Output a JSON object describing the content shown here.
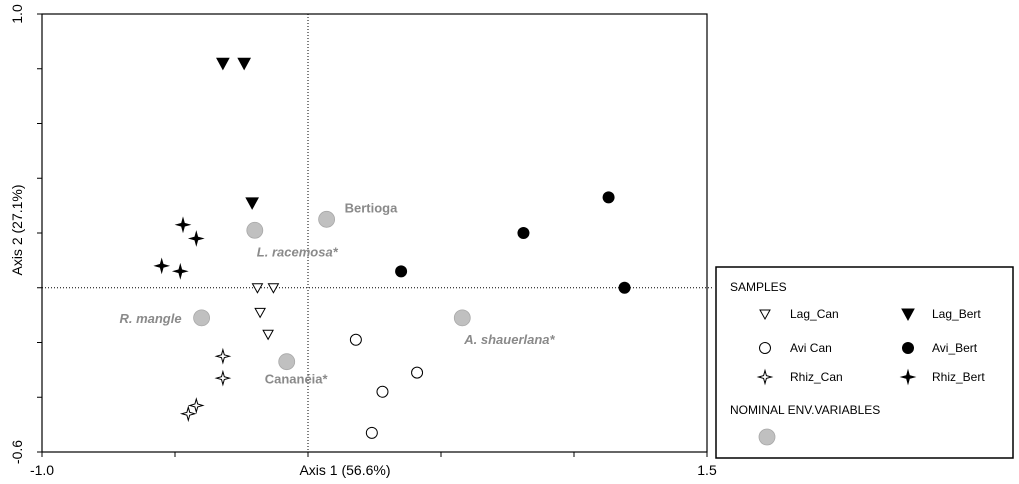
{
  "chart_data": {
    "type": "scatter",
    "xlabel": "Axis 1 (56.6%)",
    "ylabel": "Axis 2 (27.1%)",
    "xlim": [
      -1.0,
      1.5
    ],
    "ylim": [
      -0.6,
      1.0
    ],
    "x_tick_labels": [
      "-1.0",
      "1.5"
    ],
    "y_tick_labels": [
      "1.0",
      "-0.6"
    ],
    "reference_lines": {
      "x": 0,
      "y": 0
    },
    "series": [
      {
        "name": "Lag_Can",
        "marker": "triangle-down-open",
        "color": "#000000",
        "points": [
          [
            -0.19,
            0.0
          ],
          [
            -0.13,
            0.0
          ],
          [
            -0.18,
            -0.09
          ],
          [
            -0.15,
            -0.17
          ]
        ]
      },
      {
        "name": "Lag_Bert",
        "marker": "triangle-down-filled",
        "color": "#000000",
        "points": [
          [
            -0.32,
            0.82
          ],
          [
            -0.24,
            0.82
          ],
          [
            -0.21,
            0.31
          ]
        ]
      },
      {
        "name": "Avi Can",
        "marker": "circle-open",
        "color": "#000000",
        "points": [
          [
            0.18,
            -0.19
          ],
          [
            0.28,
            -0.38
          ],
          [
            0.41,
            -0.31
          ],
          [
            0.24,
            -0.53
          ]
        ]
      },
      {
        "name": "Avi_Bert",
        "marker": "circle-filled",
        "color": "#000000",
        "points": [
          [
            0.35,
            0.06
          ],
          [
            0.81,
            0.2
          ],
          [
            1.13,
            0.33
          ],
          [
            1.19,
            0.0
          ]
        ]
      },
      {
        "name": "Rhiz_Can",
        "marker": "star4-open",
        "color": "#000000",
        "points": [
          [
            -0.32,
            -0.25
          ],
          [
            -0.32,
            -0.33
          ],
          [
            -0.45,
            -0.46
          ],
          [
            -0.42,
            -0.43
          ]
        ]
      },
      {
        "name": "Rhiz_Bert",
        "marker": "star4-filled",
        "color": "#000000",
        "points": [
          [
            -0.47,
            0.23
          ],
          [
            -0.42,
            0.18
          ],
          [
            -0.55,
            0.08
          ],
          [
            -0.48,
            0.06
          ]
        ]
      },
      {
        "name": "",
        "group": "NOMINAL ENV.VARIABLES",
        "marker": "circle-gray",
        "color": "#c0c0c0",
        "points": [
          {
            "x": 0.07,
            "y": 0.25,
            "label": "Bertioga",
            "italic": false,
            "anchor": "right"
          },
          {
            "x": -0.2,
            "y": 0.21,
            "label": "L. racemosa*",
            "italic": true,
            "anchor": "below-right"
          },
          {
            "x": 0.58,
            "y": -0.11,
            "label": "A. shauerlana*",
            "italic": true,
            "anchor": "below-right"
          },
          {
            "x": -0.4,
            "y": -0.11,
            "label": "R. mangle",
            "italic": true,
            "anchor": "left"
          },
          {
            "x": -0.08,
            "y": -0.27,
            "label": "Cananéia*",
            "italic": false,
            "anchor": "below"
          }
        ]
      }
    ],
    "legend": {
      "position": "right",
      "samples_title": "SAMPLES",
      "nominal_title": "NOMINAL ENV.VARIABLES",
      "entries": [
        "Lag_Can",
        "Lag_Bert",
        "Avi Can",
        "Avi_Bert",
        "Rhiz_Can",
        "Rhiz_Bert"
      ]
    }
  }
}
